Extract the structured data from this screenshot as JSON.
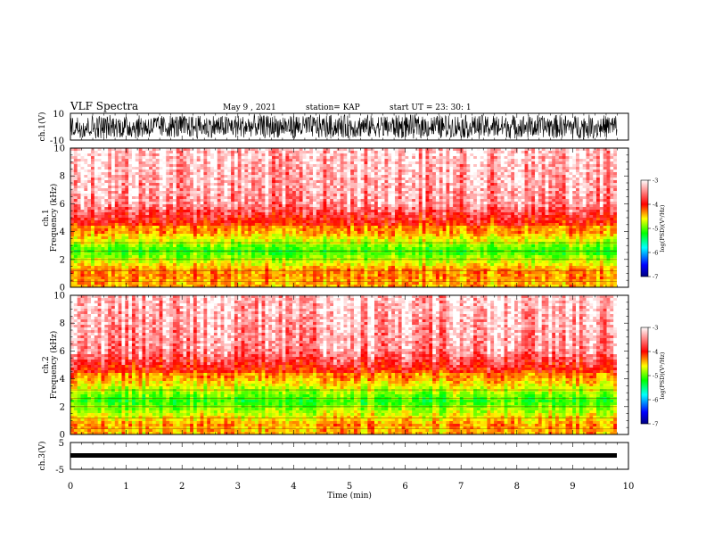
{
  "header": {
    "title": "VLF Spectra",
    "date": "May 9 , 2021",
    "station": "station= KAP",
    "start": "start UT = 23: 30: 1"
  },
  "chart_data": [
    {
      "type": "line",
      "id": "ch1-waveform",
      "ylabel": "ch.1(V)",
      "ylim": [
        -10,
        10
      ],
      "ytick_labels": [
        "10",
        "-10"
      ],
      "xlim": [
        0,
        10
      ]
    },
    {
      "type": "heatmap",
      "id": "ch1-spectrogram",
      "ylabel": "ch.1\nFrequency (kHz)",
      "ylim": [
        0,
        10
      ],
      "ytick_labels": [
        "0",
        "2",
        "4",
        "6",
        "8",
        "10"
      ],
      "xlim": [
        0,
        10
      ],
      "colorbar": {
        "label": "log(PSD)(V²/Hz)",
        "range": [
          -7,
          -3
        ],
        "tick_labels": [
          "-3",
          "-4",
          "-5",
          "-6",
          "-7"
        ]
      }
    },
    {
      "type": "heatmap",
      "id": "ch2-spectrogram",
      "ylabel": "ch.2\nFrequency (kHz)",
      "ylim": [
        0,
        10
      ],
      "ytick_labels": [
        "0",
        "2",
        "4",
        "6",
        "8",
        "10"
      ],
      "xlim": [
        0,
        10
      ],
      "colorbar": {
        "label": "log(PSD)(V²/Hz)",
        "range": [
          -7,
          -3
        ],
        "tick_labels": [
          "-3",
          "-4",
          "-5",
          "-6",
          "-7"
        ]
      }
    },
    {
      "type": "line",
      "id": "ch3-waveform",
      "ylabel": "ch.3(V)",
      "ylim": [
        -5,
        5
      ],
      "ytick_labels": [
        "5",
        "-5"
      ],
      "xlim": [
        0,
        10
      ],
      "xlabel": "Time (min)",
      "xtick_labels": [
        "0",
        "1",
        "2",
        "3",
        "4",
        "5",
        "6",
        "7",
        "8",
        "9",
        "10"
      ]
    }
  ],
  "colors": {
    "colormap": [
      "#0000a0",
      "#0000ff",
      "#00ffff",
      "#00ff00",
      "#ffff00",
      "#ff0000",
      "#ffffff"
    ],
    "trace": "#000000"
  }
}
